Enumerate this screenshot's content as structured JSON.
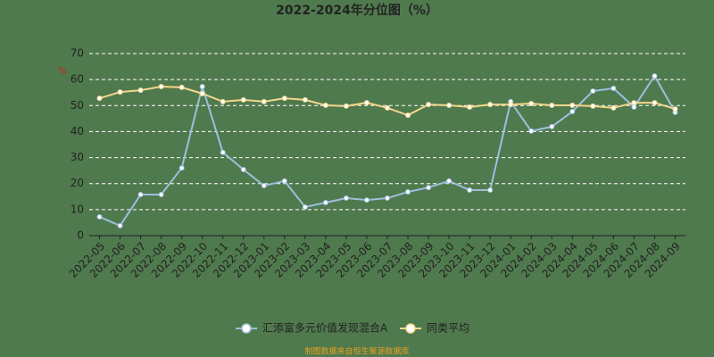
{
  "chart_data": {
    "type": "line",
    "title": "2022-2024年分位图（%）",
    "y_label": "%",
    "categories": [
      "2022-05",
      "2022-06",
      "2022-07",
      "2022-08",
      "2022-09",
      "2022-10",
      "2022-11",
      "2022-12",
      "2023-01",
      "2023-02",
      "2023-03",
      "2023-04",
      "2023-05",
      "2023-06",
      "2023-07",
      "2023-08",
      "2023-09",
      "2023-10",
      "2023-11",
      "2023-12",
      "2024-01",
      "2024-02",
      "2024-03",
      "2024-04",
      "2024-05",
      "2024-06",
      "2024-07",
      "2024-08",
      "2024-09"
    ],
    "series": [
      {
        "name": "汇添富多元价值发现混合A",
        "color": "#9dbfde",
        "values": [
          7.2,
          3.8,
          15.8,
          15.8,
          26,
          57.3,
          32,
          25.4,
          19.2,
          21,
          11,
          12.7,
          14.4,
          13.7,
          14.4,
          16.8,
          18.5,
          21,
          17.5,
          17.5,
          51.5,
          40.2,
          41.9,
          47.7,
          55.6,
          56.6,
          49.4,
          61.4,
          47.4
        ]
      },
      {
        "name": "同类平均",
        "color": "#f3d68a",
        "values": [
          52.8,
          55.2,
          55.9,
          57.3,
          57,
          54.6,
          51.5,
          52.2,
          51.5,
          52.8,
          52.2,
          50.1,
          49.8,
          51.1,
          49.1,
          46.3,
          50.4,
          50.1,
          49.4,
          50.4,
          50.4,
          50.8,
          50.1,
          50.1,
          49.8,
          49.1,
          51.1,
          51.1,
          48.7
        ]
      }
    ],
    "ylim": [
      0,
      70
    ],
    "yticks": [
      0,
      10,
      20,
      30,
      40,
      50,
      60,
      70
    ],
    "grid": true,
    "legend": "bottom",
    "footer": "制图数据来自恒生聚源数据库"
  }
}
